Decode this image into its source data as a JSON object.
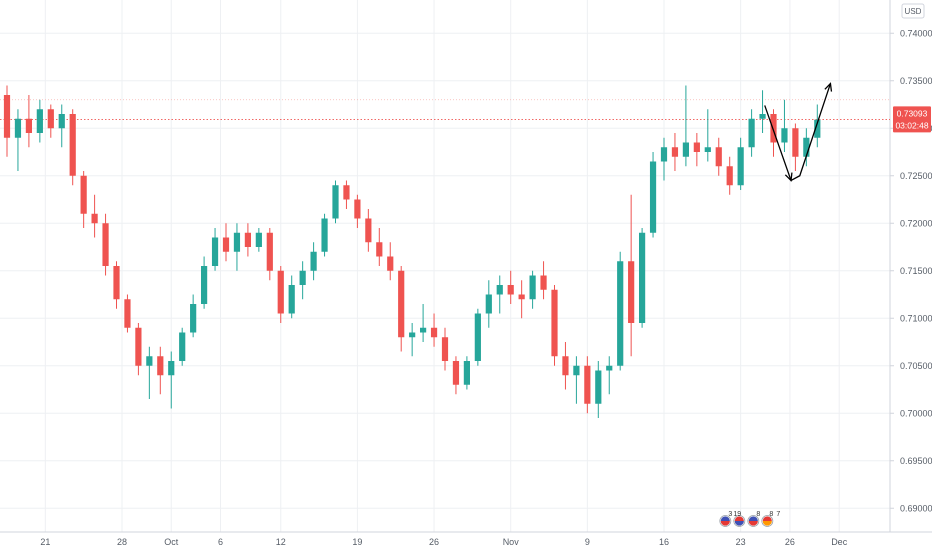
{
  "chart_data": {
    "type": "candlestick",
    "currency": "USD",
    "y_range": [
      0.6875,
      0.7435
    ],
    "y_ticks": [
      {
        "value": 0.74,
        "label": "0.74000"
      },
      {
        "value": 0.735,
        "label": "0.73500"
      },
      {
        "value": 0.73,
        "label": "0.73000"
      },
      {
        "value": 0.725,
        "label": "0.72500"
      },
      {
        "value": 0.72,
        "label": "0.72000"
      },
      {
        "value": 0.715,
        "label": "0.71500"
      },
      {
        "value": 0.71,
        "label": "0.71000"
      },
      {
        "value": 0.705,
        "label": "0.70500"
      },
      {
        "value": 0.7,
        "label": "0.70000"
      },
      {
        "value": 0.695,
        "label": "0.69500"
      },
      {
        "value": 0.69,
        "label": "0.69000"
      }
    ],
    "x_range": [
      0,
      71
    ],
    "x_ticks": [
      {
        "pos": 3.5,
        "label": "21"
      },
      {
        "pos": 10.5,
        "label": "28"
      },
      {
        "pos": 15,
        "label": "Oct"
      },
      {
        "pos": 19.5,
        "label": "6"
      },
      {
        "pos": 25,
        "label": "12"
      },
      {
        "pos": 32,
        "label": "19"
      },
      {
        "pos": 39,
        "label": "26"
      },
      {
        "pos": 46,
        "label": "Nov"
      },
      {
        "pos": 53,
        "label": "9"
      },
      {
        "pos": 60,
        "label": "16"
      },
      {
        "pos": 67,
        "label": "23"
      },
      {
        "pos": 71.5,
        "label": "26"
      },
      {
        "pos": 76,
        "label": "Dec"
      }
    ],
    "candles": [
      [
        0.7335,
        0.7345,
        0.727,
        0.729
      ],
      [
        0.729,
        0.732,
        0.7255,
        0.731
      ],
      [
        0.731,
        0.7335,
        0.728,
        0.7295
      ],
      [
        0.7295,
        0.733,
        0.7285,
        0.732
      ],
      [
        0.732,
        0.7325,
        0.729,
        0.73
      ],
      [
        0.73,
        0.7325,
        0.728,
        0.7315
      ],
      [
        0.7315,
        0.732,
        0.724,
        0.725
      ],
      [
        0.725,
        0.7255,
        0.7195,
        0.721
      ],
      [
        0.721,
        0.723,
        0.7185,
        0.72
      ],
      [
        0.72,
        0.721,
        0.7145,
        0.7155
      ],
      [
        0.7155,
        0.716,
        0.711,
        0.712
      ],
      [
        0.712,
        0.7125,
        0.7085,
        0.709
      ],
      [
        0.709,
        0.7095,
        0.704,
        0.705
      ],
      [
        0.705,
        0.707,
        0.7015,
        0.706
      ],
      [
        0.706,
        0.707,
        0.702,
        0.704
      ],
      [
        0.704,
        0.7065,
        0.7005,
        0.7055
      ],
      [
        0.7055,
        0.709,
        0.705,
        0.7085
      ],
      [
        0.7085,
        0.7125,
        0.708,
        0.7115
      ],
      [
        0.7115,
        0.7165,
        0.711,
        0.7155
      ],
      [
        0.7155,
        0.7195,
        0.715,
        0.7185
      ],
      [
        0.7185,
        0.72,
        0.716,
        0.717
      ],
      [
        0.717,
        0.72,
        0.715,
        0.719
      ],
      [
        0.719,
        0.72,
        0.7165,
        0.7175
      ],
      [
        0.7175,
        0.7195,
        0.717,
        0.719
      ],
      [
        0.719,
        0.7195,
        0.714,
        0.715
      ],
      [
        0.715,
        0.7155,
        0.7095,
        0.7105
      ],
      [
        0.7105,
        0.7145,
        0.71,
        0.7135
      ],
      [
        0.7135,
        0.716,
        0.712,
        0.715
      ],
      [
        0.715,
        0.718,
        0.714,
        0.717
      ],
      [
        0.717,
        0.721,
        0.7165,
        0.7205
      ],
      [
        0.7205,
        0.7245,
        0.72,
        0.724
      ],
      [
        0.724,
        0.7245,
        0.7215,
        0.7225
      ],
      [
        0.7225,
        0.723,
        0.7195,
        0.7205
      ],
      [
        0.7205,
        0.7215,
        0.717,
        0.718
      ],
      [
        0.718,
        0.7195,
        0.7155,
        0.7165
      ],
      [
        0.7165,
        0.718,
        0.714,
        0.715
      ],
      [
        0.715,
        0.7155,
        0.7065,
        0.708
      ],
      [
        0.708,
        0.7095,
        0.706,
        0.7085
      ],
      [
        0.7085,
        0.7115,
        0.7075,
        0.709
      ],
      [
        0.709,
        0.7105,
        0.707,
        0.708
      ],
      [
        0.708,
        0.709,
        0.7045,
        0.7055
      ],
      [
        0.7055,
        0.706,
        0.702,
        0.703
      ],
      [
        0.703,
        0.706,
        0.7025,
        0.7055
      ],
      [
        0.7055,
        0.711,
        0.705,
        0.7105
      ],
      [
        0.7105,
        0.714,
        0.709,
        0.7125
      ],
      [
        0.7125,
        0.7145,
        0.7105,
        0.7135
      ],
      [
        0.7135,
        0.715,
        0.7115,
        0.7125
      ],
      [
        0.7125,
        0.714,
        0.71,
        0.712
      ],
      [
        0.712,
        0.715,
        0.711,
        0.7145
      ],
      [
        0.7145,
        0.716,
        0.712,
        0.713
      ],
      [
        0.713,
        0.7135,
        0.705,
        0.706
      ],
      [
        0.706,
        0.7075,
        0.7025,
        0.704
      ],
      [
        0.704,
        0.706,
        0.701,
        0.705
      ],
      [
        0.705,
        0.706,
        0.7,
        0.701
      ],
      [
        0.701,
        0.7055,
        0.6995,
        0.7045
      ],
      [
        0.7045,
        0.706,
        0.702,
        0.705
      ],
      [
        0.705,
        0.717,
        0.7045,
        0.716
      ],
      [
        0.716,
        0.723,
        0.706,
        0.7095
      ],
      [
        0.7095,
        0.7195,
        0.709,
        0.719
      ],
      [
        0.719,
        0.7275,
        0.7185,
        0.7265
      ],
      [
        0.7265,
        0.729,
        0.7245,
        0.728
      ],
      [
        0.728,
        0.7295,
        0.7255,
        0.727
      ],
      [
        0.727,
        0.7345,
        0.726,
        0.7285
      ],
      [
        0.7285,
        0.7295,
        0.726,
        0.7275
      ],
      [
        0.7275,
        0.732,
        0.7265,
        0.728
      ],
      [
        0.728,
        0.729,
        0.725,
        0.726
      ],
      [
        0.726,
        0.727,
        0.723,
        0.724
      ],
      [
        0.724,
        0.729,
        0.7235,
        0.728
      ],
      [
        0.728,
        0.732,
        0.727,
        0.731
      ],
      [
        0.731,
        0.734,
        0.7295,
        0.7315
      ],
      [
        0.7315,
        0.732,
        0.727,
        0.7285
      ],
      [
        0.7285,
        0.733,
        0.7275,
        0.73
      ],
      [
        0.73,
        0.7305,
        0.7255,
        0.727
      ],
      [
        0.727,
        0.73,
        0.726,
        0.729
      ],
      [
        0.729,
        0.7325,
        0.728,
        0.7309
      ]
    ],
    "current_price": {
      "value": 0.73093,
      "label": "0.73093",
      "countdown": "03:02:48"
    },
    "drawing": {
      "points": [
        [
          69.2,
          0.7324
        ],
        [
          71.6,
          0.7245
        ],
        [
          72.4,
          0.725
        ],
        [
          75.2,
          0.7347
        ]
      ]
    },
    "events": {
      "label_1": "3",
      "label_2": "19",
      "label_3": "8",
      "label_4": "8",
      "label_5": "7"
    },
    "colors": {
      "up": "#26a69a",
      "down": "#ef5350",
      "grid": "#eef0f3",
      "axis": "#d1d4dc",
      "price": "#ef5350",
      "drawing": "#000000"
    }
  }
}
